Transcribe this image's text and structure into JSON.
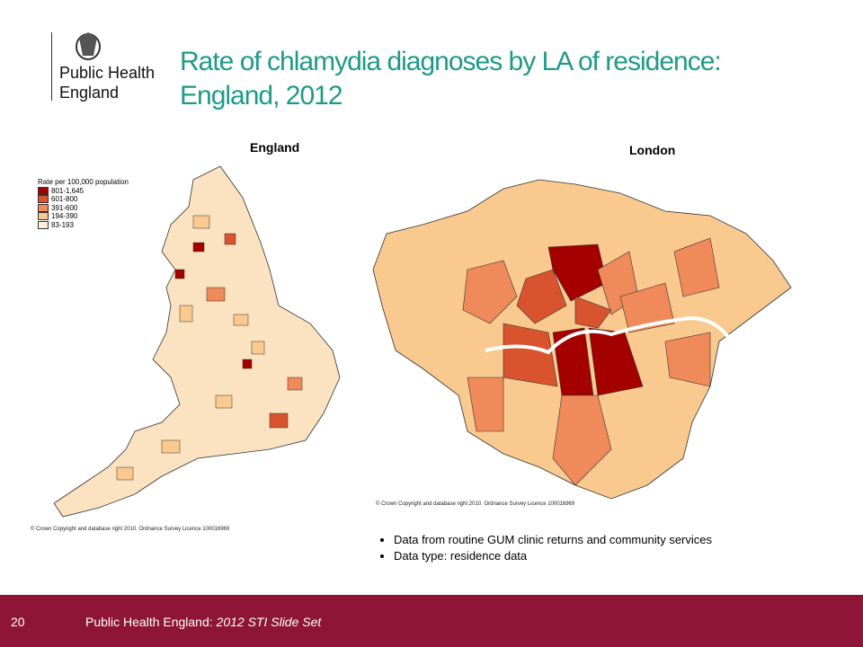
{
  "header": {
    "logo_lines": [
      "Public Health",
      "England"
    ],
    "title_lines": [
      "Rate of chlamydia diagnoses by LA of residence:",
      "England, 2012"
    ]
  },
  "maps": [
    {
      "title": "England",
      "legend": {
        "title": "Rate per 100,000 population",
        "items": [
          {
            "label": "801-1,645",
            "color": "#a50000"
          },
          {
            "label": "601-800",
            "color": "#d9532e"
          },
          {
            "label": "391-600",
            "color": "#f08a5b"
          },
          {
            "label": "194-390",
            "color": "#f9c98f"
          },
          {
            "label": "83-193",
            "color": "#fdf0dc"
          }
        ]
      },
      "copyright": "© Crown Copyright and database right 2010. Ordnance Survey Licence 100016969"
    },
    {
      "title": "London",
      "copyright": "© Crown Copyright and database right 2010. Ordnance Survey Licence 100016969"
    }
  ],
  "bullets": [
    "Data from routine GUM clinic returns  and community services",
    "Data type: residence data"
  ],
  "footer": {
    "page": "20",
    "text": "Public Health England:",
    "italic": "2012 STI Slide Set"
  }
}
